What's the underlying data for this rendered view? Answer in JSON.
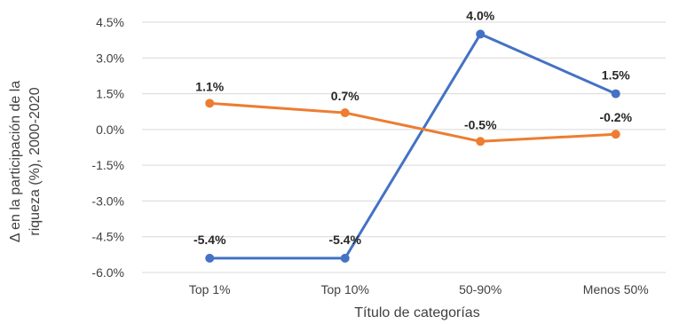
{
  "chart_data": {
    "type": "line",
    "categories": [
      "Top 1%",
      "Top 10%",
      "50-90%",
      "Menos 50%"
    ],
    "series": [
      {
        "color": "#4472C4",
        "values": [
          -5.4,
          -5.4,
          4.0,
          1.5
        ],
        "labels": [
          "-5.4%",
          "-5.4%",
          "4.0%",
          "1.5%"
        ]
      },
      {
        "color": "#ED7D31",
        "values": [
          1.1,
          0.7,
          -0.5,
          -0.2
        ],
        "labels": [
          "1.1%",
          "0.7%",
          "-0.5%",
          "-0.2%"
        ]
      }
    ],
    "xlabel": "Título de categorías",
    "ylabel_line1": "Δ en la participación de la",
    "ylabel_line2": "riqueza (%), 2000-2020",
    "ylim": [
      -6.0,
      4.5
    ],
    "yticks": [
      4.5,
      3.0,
      1.5,
      0.0,
      -1.5,
      -3.0,
      -4.5,
      -6.0
    ],
    "ytick_labels": [
      "4.5%",
      "3.0%",
      "1.5%",
      "0.0%",
      "-1.5%",
      "-3.0%",
      "-4.5%",
      "-6.0%"
    ],
    "grid": true,
    "legend": "none"
  }
}
